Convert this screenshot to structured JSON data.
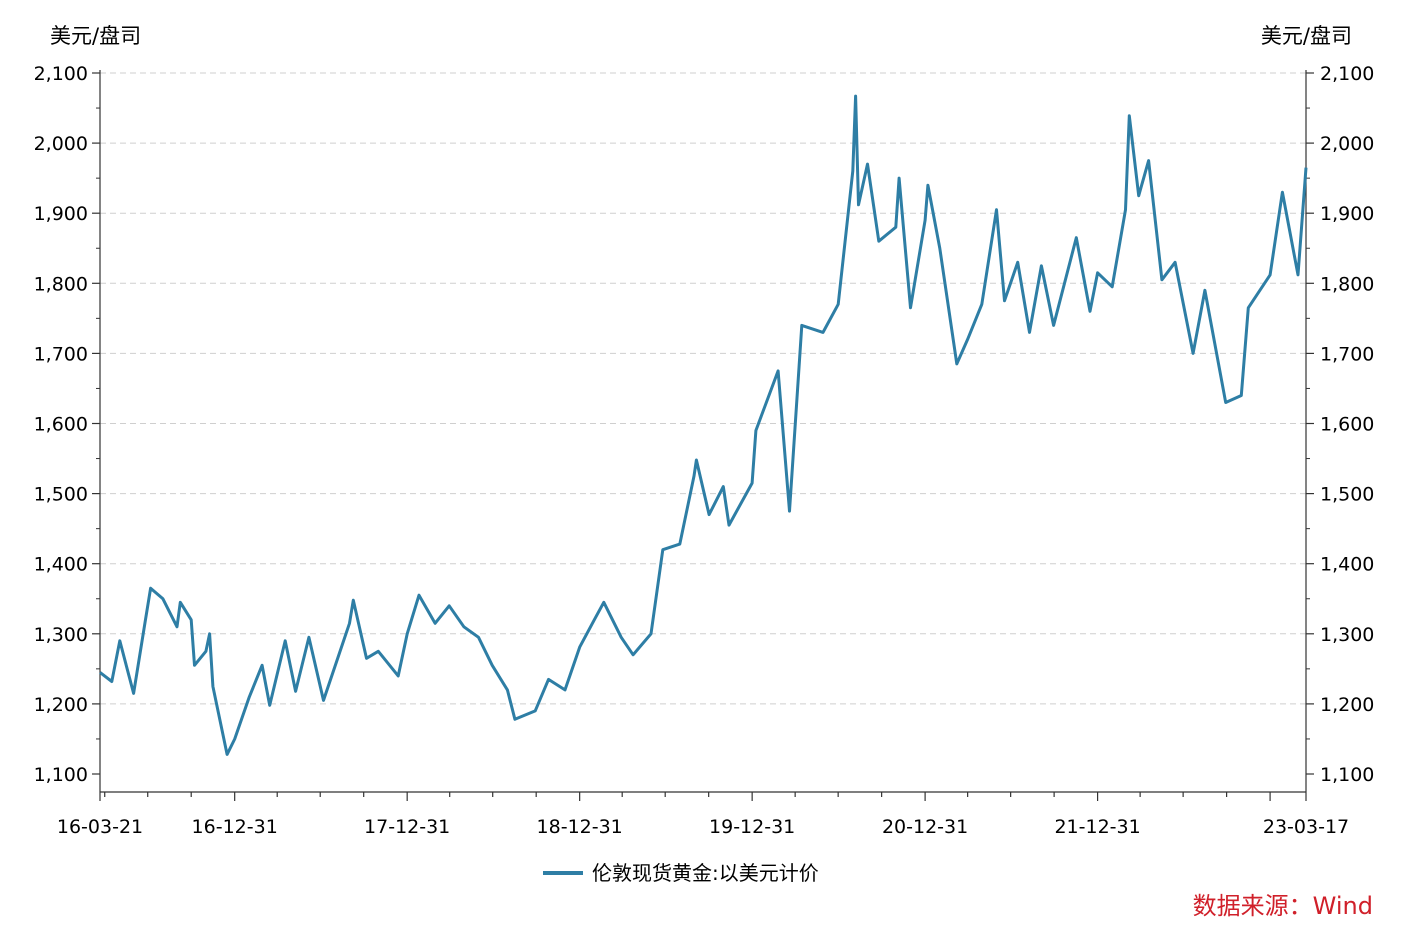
{
  "chart_data": {
    "type": "line",
    "left_axis_unit": "美元/盘司",
    "right_axis_unit": "美元/盘司",
    "y_ticks": [
      "1,100",
      "1,200",
      "1,300",
      "1,400",
      "1,500",
      "1,600",
      "1,700",
      "1,800",
      "1,900",
      "2,000",
      "2,100"
    ],
    "ylim": [
      1100,
      2100
    ],
    "x_tick_labels": [
      "16-03-21",
      "16-12-31",
      "17-12-31",
      "18-12-31",
      "19-12-31",
      "20-12-31",
      "21-12-31",
      "23-03-17"
    ],
    "x_range": [
      "2016-03-21",
      "2023-03-17"
    ],
    "grid": "horizontal dashed",
    "legend_position": "bottom-center",
    "series": [
      {
        "name": "伦敦现货黄金:以美元计价",
        "color": "#2e7ea5",
        "points": [
          [
            "2016-03-21",
            1245
          ],
          [
            "2016-04-15",
            1232
          ],
          [
            "2016-05-02",
            1290
          ],
          [
            "2016-05-31",
            1215
          ],
          [
            "2016-06-24",
            1315
          ],
          [
            "2016-07-06",
            1365
          ],
          [
            "2016-08-01",
            1350
          ],
          [
            "2016-08-31",
            1310
          ],
          [
            "2016-09-07",
            1345
          ],
          [
            "2016-09-30",
            1320
          ],
          [
            "2016-10-07",
            1255
          ],
          [
            "2016-10-31",
            1275
          ],
          [
            "2016-11-08",
            1300
          ],
          [
            "2016-11-15",
            1225
          ],
          [
            "2016-12-15",
            1128
          ],
          [
            "2016-12-31",
            1150
          ],
          [
            "2017-01-31",
            1210
          ],
          [
            "2017-02-27",
            1255
          ],
          [
            "2017-03-15",
            1198
          ],
          [
            "2017-04-17",
            1290
          ],
          [
            "2017-05-09",
            1218
          ],
          [
            "2017-06-06",
            1295
          ],
          [
            "2017-07-07",
            1205
          ],
          [
            "2017-08-31",
            1315
          ],
          [
            "2017-09-08",
            1348
          ],
          [
            "2017-10-06",
            1265
          ],
          [
            "2017-10-31",
            1275
          ],
          [
            "2017-12-12",
            1240
          ],
          [
            "2017-12-31",
            1300
          ],
          [
            "2018-01-25",
            1355
          ],
          [
            "2018-02-28",
            1315
          ],
          [
            "2018-03-30",
            1340
          ],
          [
            "2018-04-30",
            1310
          ],
          [
            "2018-05-31",
            1295
          ],
          [
            "2018-06-29",
            1255
          ],
          [
            "2018-07-31",
            1220
          ],
          [
            "2018-08-16",
            1178
          ],
          [
            "2018-09-28",
            1190
          ],
          [
            "2018-10-26",
            1235
          ],
          [
            "2018-11-30",
            1220
          ],
          [
            "2018-12-31",
            1281
          ],
          [
            "2019-01-31",
            1320
          ],
          [
            "2019-02-20",
            1345
          ],
          [
            "2019-03-29",
            1295
          ],
          [
            "2019-04-23",
            1270
          ],
          [
            "2019-05-31",
            1300
          ],
          [
            "2019-06-25",
            1420
          ],
          [
            "2019-07-31",
            1428
          ],
          [
            "2019-08-30",
            1525
          ],
          [
            "2019-09-04",
            1548
          ],
          [
            "2019-10-01",
            1470
          ],
          [
            "2019-10-31",
            1510
          ],
          [
            "2019-11-12",
            1455
          ],
          [
            "2019-12-31",
            1515
          ],
          [
            "2020-01-08",
            1590
          ],
          [
            "2020-02-24",
            1675
          ],
          [
            "2020-03-19",
            1475
          ],
          [
            "2020-04-14",
            1740
          ],
          [
            "2020-05-29",
            1730
          ],
          [
            "2020-06-30",
            1770
          ],
          [
            "2020-07-31",
            1960
          ],
          [
            "2020-08-06",
            2067
          ],
          [
            "2020-08-12",
            1912
          ],
          [
            "2020-08-31",
            1970
          ],
          [
            "2020-09-24",
            1860
          ],
          [
            "2020-10-30",
            1880
          ],
          [
            "2020-11-06",
            1950
          ],
          [
            "2020-11-30",
            1765
          ],
          [
            "2020-12-31",
            1890
          ],
          [
            "2021-01-06",
            1940
          ],
          [
            "2021-01-31",
            1850
          ],
          [
            "2021-03-08",
            1685
          ],
          [
            "2021-03-31",
            1720
          ],
          [
            "2021-04-30",
            1770
          ],
          [
            "2021-05-31",
            1905
          ],
          [
            "2021-06-17",
            1775
          ],
          [
            "2021-07-15",
            1830
          ],
          [
            "2021-08-09",
            1730
          ],
          [
            "2021-09-03",
            1825
          ],
          [
            "2021-09-29",
            1740
          ],
          [
            "2021-11-16",
            1865
          ],
          [
            "2021-12-15",
            1760
          ],
          [
            "2021-12-31",
            1815
          ],
          [
            "2022-01-31",
            1795
          ],
          [
            "2022-02-28",
            1905
          ],
          [
            "2022-03-08",
            2039
          ],
          [
            "2022-03-28",
            1925
          ],
          [
            "2022-04-18",
            1975
          ],
          [
            "2022-05-16",
            1805
          ],
          [
            "2022-06-13",
            1830
          ],
          [
            "2022-07-21",
            1700
          ],
          [
            "2022-08-15",
            1790
          ],
          [
            "2022-09-28",
            1630
          ],
          [
            "2022-10-31",
            1640
          ],
          [
            "2022-11-15",
            1765
          ],
          [
            "2022-12-31",
            1812
          ],
          [
            "2023-01-26",
            1930
          ],
          [
            "2023-02-28",
            1812
          ],
          [
            "2023-03-17",
            1965
          ]
        ]
      }
    ]
  },
  "source_note": "数据来源：Wind"
}
